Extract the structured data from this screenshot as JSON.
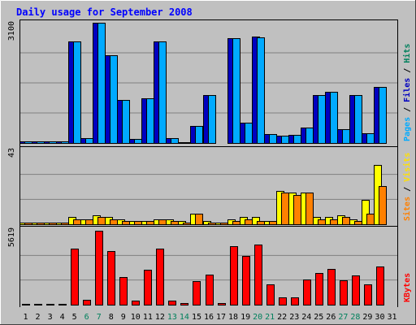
{
  "chart_data": {
    "type": "bar",
    "title": "Daily usage for September 2008",
    "categories": [
      "1",
      "2",
      "3",
      "4",
      "5",
      "6",
      "7",
      "8",
      "9",
      "10",
      "11",
      "12",
      "13",
      "14",
      "15",
      "16",
      "17",
      "18",
      "19",
      "20",
      "21",
      "22",
      "23",
      "24",
      "25",
      "26",
      "27",
      "28",
      "29",
      "30",
      "31"
    ],
    "weekend_days": [
      "6",
      "7",
      "13",
      "14",
      "20",
      "21",
      "27",
      "28"
    ],
    "panels": [
      {
        "id": "hits",
        "ymax_label": "3100",
        "ymax": 3100,
        "right_labels": [
          {
            "text": "Hits",
            "color": "#00805c"
          },
          {
            "text": " / ",
            "color": "#000000"
          },
          {
            "text": "Files",
            "color": "#0000c0"
          },
          {
            "text": " / ",
            "color": "#000000"
          },
          {
            "text": "Pages",
            "color": "#00aaff"
          }
        ],
        "series": [
          {
            "name": "Hits",
            "color": "#00805c",
            "values": [
              0,
              0,
              0,
              0,
              0,
              0,
              0,
              0,
              0,
              0,
              0,
              0,
              0,
              0,
              0,
              0,
              0,
              0,
              0,
              0,
              0,
              0,
              0,
              0,
              0,
              0,
              0,
              0,
              0,
              0,
              0
            ]
          },
          {
            "name": "Files",
            "color": "#0000c0",
            "values": [
              40,
              40,
              40,
              40,
              2620,
              130,
              3100,
              2260,
              1120,
              100,
              1150,
              2620,
              130,
              30,
              450,
              1240,
              0,
              2700,
              520,
              2740,
              220,
              180,
              200,
              400,
              1240,
              1330,
              350,
              1230,
              260,
              1450,
              0
            ]
          },
          {
            "name": "Pages",
            "color": "#00aaff",
            "values": [
              40,
              40,
              40,
              40,
              2620,
              130,
              3100,
              2260,
              1120,
              100,
              1150,
              2620,
              130,
              30,
              450,
              1240,
              0,
              2700,
              520,
              2720,
              220,
              180,
              200,
              400,
              1240,
              1330,
              350,
              1230,
              260,
              1450,
              0
            ]
          }
        ]
      },
      {
        "id": "visits",
        "ymax_label": "43",
        "ymax": 43,
        "right_labels": [
          {
            "text": "Visits",
            "color": "#ffe000"
          },
          {
            "text": " / ",
            "color": "#000000"
          },
          {
            "text": "Sites",
            "color": "#ff8000"
          }
        ],
        "series": [
          {
            "name": "Visits",
            "color": "#ffff00",
            "values": [
              1,
              1,
              1,
              1,
              4,
              3,
              5,
              4,
              3,
              2,
              2,
              3,
              3,
              2,
              6,
              2,
              1,
              3,
              4,
              4,
              2,
              19,
              18,
              18,
              4,
              4,
              5,
              3,
              14,
              34,
              0
            ]
          },
          {
            "name": "Sites",
            "color": "#ff8000",
            "values": [
              1,
              1,
              1,
              1,
              3,
              3,
              4,
              3,
              2,
              2,
              2,
              3,
              2,
              1,
              6,
              1,
              1,
              2,
              3,
              2,
              2,
              18,
              17,
              18,
              3,
              3,
              4,
              2,
              6,
              22,
              0
            ]
          }
        ]
      },
      {
        "id": "kbytes",
        "ymax_label": "5619",
        "ymax": 5619,
        "right_labels": [
          {
            "text": "KBytes",
            "color": "#ff0000"
          }
        ],
        "series": [
          {
            "name": "KBytes",
            "color": "#ff0000",
            "values": [
              50,
              50,
              50,
              50,
              4250,
              350,
              5619,
              4050,
              2080,
              300,
              2670,
              4270,
              300,
              150,
              1780,
              2270,
              150,
              4460,
              3690,
              4580,
              1530,
              550,
              550,
              1930,
              2420,
              2740,
              1880,
              2250,
              1540,
              2930,
              0
            ]
          }
        ]
      }
    ]
  },
  "colors": {
    "background": "#c0c0c0",
    "plot_background": "#c0c0c0",
    "title": "#0000ff",
    "grid": "#808080",
    "bar_outline": "#000000"
  }
}
